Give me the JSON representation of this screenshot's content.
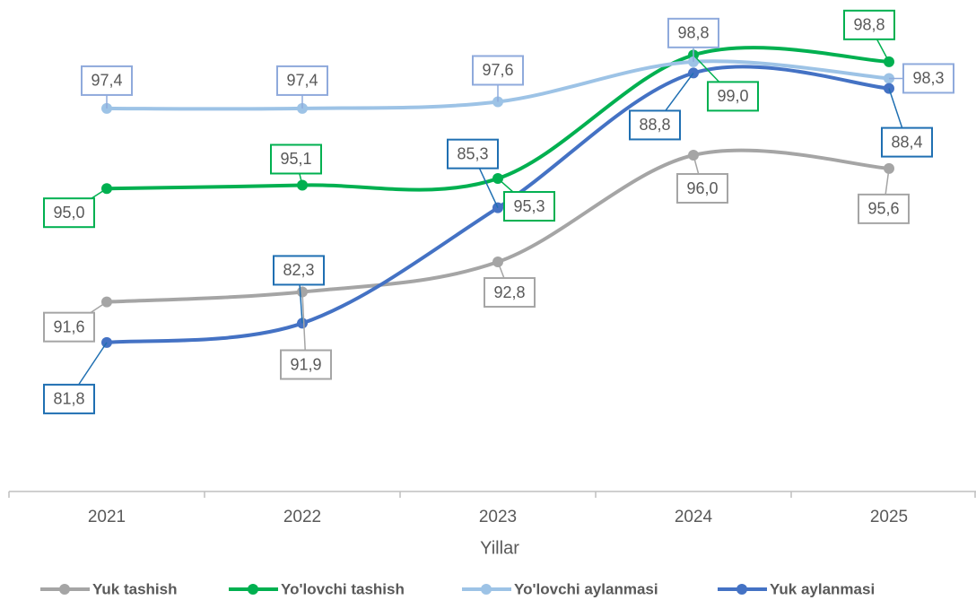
{
  "chart_data": {
    "type": "line",
    "x_label": "Yillar",
    "categories": [
      "2021",
      "2022",
      "2023",
      "2024",
      "2025"
    ],
    "ylim": [
      86,
      101
    ],
    "y2lim": [
      78,
      91
    ],
    "series": [
      {
        "name": "Yuk tashish",
        "color": "#a5a5a5",
        "border": "#a5a5a5",
        "values": [
          91.6,
          91.9,
          92.8,
          96.0,
          95.6
        ],
        "value_labels": [
          "91,6",
          "91,9",
          "92,8",
          "96,0",
          "95,6"
        ]
      },
      {
        "name": "Yo'lovchi tashish",
        "color": "#00b050",
        "border": "#00b050",
        "values": [
          95.0,
          95.1,
          95.3,
          99.0,
          98.8
        ],
        "value_labels": [
          "95,0",
          "95,1",
          "95,3",
          "99,0",
          "98,8"
        ]
      },
      {
        "name": "Yo'lovchi aylanmasi",
        "color": "#9dc3e6",
        "border": "#8faadc",
        "values": [
          97.4,
          97.4,
          97.6,
          98.8,
          98.3
        ],
        "value_labels": [
          "97,4",
          "97,4",
          "97,6",
          "98,8",
          "98,3"
        ]
      },
      {
        "name": "Yuk aylanmasi",
        "color": "#4472c4",
        "border": "#1f6fb2",
        "axis": "y2",
        "values": [
          81.8,
          82.3,
          85.3,
          88.8,
          88.4
        ],
        "value_labels": [
          "81,8",
          "82,3",
          "85,3",
          "88,8",
          "88,4"
        ]
      }
    ]
  }
}
